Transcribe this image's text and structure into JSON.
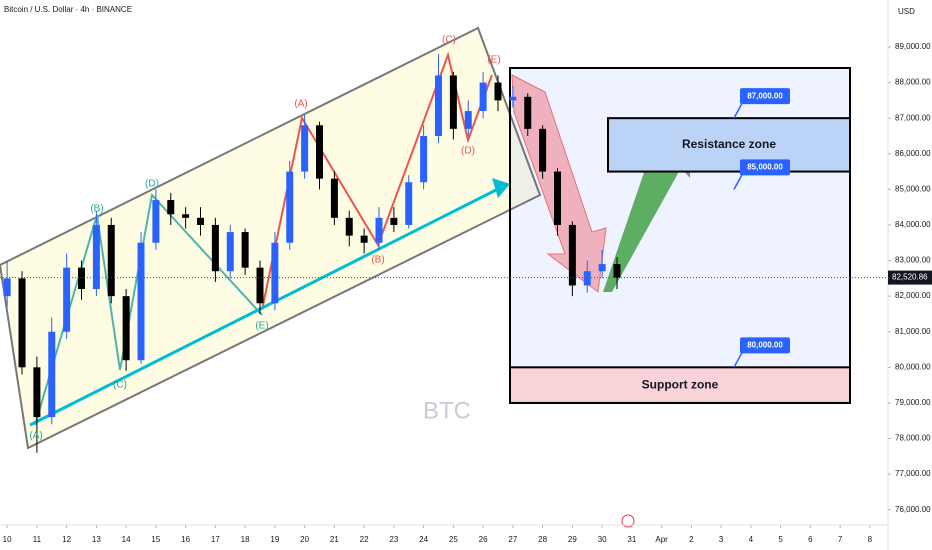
{
  "chart_data": {
    "type": "candlestick",
    "title": "Bitcoin / U.S. Dollar · 4h · BINANCE",
    "currency": "USD",
    "watermark": "BTC",
    "x": [
      10,
      10.5,
      11,
      11.5,
      12,
      12.5,
      13,
      13.5,
      14,
      14.5,
      15,
      15.5,
      16,
      16.5,
      17,
      17.5,
      18,
      18.5,
      19,
      19.5,
      20,
      20.5,
      21,
      21.5,
      22,
      22.5,
      23,
      23.5,
      24,
      24.5,
      25,
      25.5,
      26,
      26.5,
      27,
      27.5,
      28,
      28.5,
      29,
      29.5,
      30,
      30.5
    ],
    "open": [
      82000,
      82500,
      80000,
      78600,
      81000,
      82800,
      82200,
      84000,
      82000,
      80200,
      83500,
      84700,
      84300,
      84200,
      84000,
      82700,
      83800,
      82800,
      81800,
      83500,
      85500,
      86800,
      85300,
      84200,
      83700,
      83500,
      84200,
      84000,
      85200,
      86500,
      88200,
      86700,
      87200,
      88000,
      87500,
      87600,
      86700,
      85500,
      84000,
      82300,
      82700,
      82900
    ],
    "high": [
      83000,
      82700,
      80300,
      81400,
      83200,
      83000,
      84400,
      84200,
      82200,
      83800,
      85000,
      84900,
      84500,
      84500,
      84200,
      84000,
      83900,
      83000,
      83800,
      85800,
      87100,
      86900,
      85500,
      84400,
      83900,
      84500,
      84500,
      85400,
      86800,
      88800,
      88300,
      87500,
      88300,
      88200,
      87900,
      87700,
      86800,
      85600,
      84100,
      83000,
      83300,
      83100
    ],
    "low": [
      81700,
      79800,
      77600,
      78400,
      80800,
      81900,
      82000,
      81800,
      79900,
      80100,
      83300,
      84000,
      83900,
      83700,
      82400,
      82500,
      82600,
      81500,
      81600,
      83300,
      85300,
      85000,
      84000,
      83400,
      83200,
      83300,
      83800,
      83900,
      85000,
      86300,
      86400,
      86500,
      87000,
      87200,
      87300,
      86500,
      85300,
      83700,
      82000,
      82100,
      82500,
      82200
    ],
    "close": [
      82500,
      80000,
      78600,
      81000,
      82800,
      82200,
      84000,
      82000,
      80200,
      83500,
      84700,
      84300,
      84200,
      84000,
      82700,
      83800,
      82800,
      81800,
      83500,
      85500,
      86800,
      85300,
      84200,
      83700,
      83500,
      84200,
      84000,
      85200,
      86500,
      88200,
      86700,
      87200,
      88000,
      87500,
      87600,
      86700,
      85500,
      84000,
      82300,
      82700,
      82900,
      82520.86
    ],
    "up_color": "#2962ff",
    "down_color": "#000000",
    "last_price": {
      "value": 82520.86,
      "label": "82,520.86"
    },
    "xlim": [
      9.76,
      39.61
    ],
    "ylim": [
      75570,
      90320
    ],
    "xticks": [
      10,
      11,
      12,
      13,
      14,
      15,
      16,
      17,
      18,
      19,
      20,
      21,
      22,
      23,
      24,
      25,
      26,
      27,
      28,
      29,
      30,
      31,
      {
        "value": 32,
        "label": "Apr"
      },
      {
        "value": 33,
        "label": "2"
      },
      {
        "value": 34,
        "label": "3"
      },
      {
        "value": 35,
        "label": "4"
      },
      {
        "value": 36,
        "label": "5"
      },
      {
        "value": 37,
        "label": "6"
      },
      {
        "value": 38,
        "label": "7"
      },
      {
        "value": 39,
        "label": "8"
      }
    ],
    "yticks": [
      {
        "value": 76000,
        "label": "76,000.00"
      },
      {
        "value": 77000,
        "label": "77,000.00"
      },
      {
        "value": 78000,
        "label": "78,000.00"
      },
      {
        "value": 79000,
        "label": "79,000.00"
      },
      {
        "value": 80000,
        "label": "80,000.00"
      },
      {
        "value": 81000,
        "label": "81,000.00"
      },
      {
        "value": 82000,
        "label": "82,000.00"
      },
      {
        "value": 83000,
        "label": "83,000.00"
      },
      {
        "value": 84000,
        "label": "84,000.00"
      },
      {
        "value": 85000,
        "label": "85,000.00"
      },
      {
        "value": 86000,
        "label": "86,000.00"
      },
      {
        "value": 87000,
        "label": "87,000.00"
      },
      {
        "value": 88000,
        "label": "88,000.00"
      },
      {
        "value": 89000,
        "label": "89,000.00"
      }
    ],
    "grid": false,
    "zones": [
      {
        "label": "Resistance zone",
        "low": 85500,
        "high": 87000,
        "color": "#bbd3f7"
      },
      {
        "label": "Support zone",
        "low": 79000,
        "high": 80000,
        "color": "#f9d3d7"
      }
    ],
    "price_callouts": [
      {
        "value": 87000,
        "label": "87,000.00"
      },
      {
        "value": 85000,
        "label": "85,000.00"
      },
      {
        "value": 80000,
        "label": "80,000.00"
      }
    ],
    "wave_labels": [
      "(A)",
      "(B)",
      "(C)",
      "(D)",
      "(E)",
      "(A)",
      "(B)",
      "(C)",
      "(D)",
      "(E)"
    ]
  }
}
